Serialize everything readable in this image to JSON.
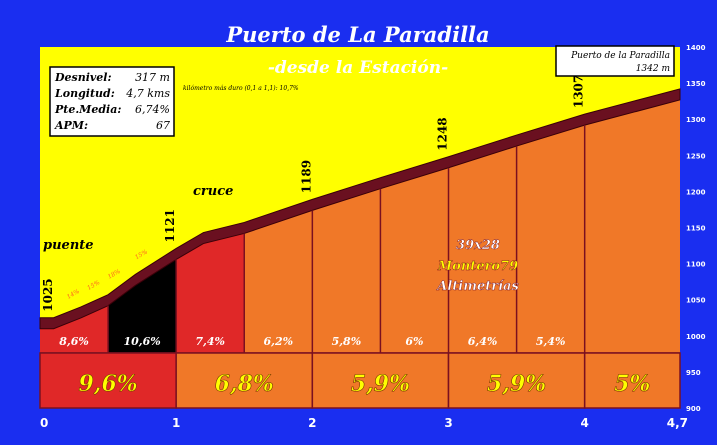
{
  "title": "Puerto de La Paradilla",
  "subtitle": "-desde la Estación-",
  "stats": [
    {
      "label": "Desnivel:",
      "value": "317 m"
    },
    {
      "label": "Longitud:",
      "value": "4,7 kms"
    },
    {
      "label": "Pte.Media:",
      "value": "6,74%"
    },
    {
      "label": "APM:",
      "value": "67"
    }
  ],
  "hardest_note": "kilómetro más duro (0,1 a 1,1): 10,7%",
  "summit": {
    "name": "Puerto de la Paradilla",
    "altitude": "1342 m"
  },
  "credits": {
    "line1": "39x28",
    "line2": "Montero79",
    "line3": "Altimetrías"
  },
  "place_labels": {
    "bridge": "puente",
    "crossing": "cruce"
  },
  "colors": {
    "background": "#1a2ef0",
    "plot": "#ffff00",
    "profile_top": "#6a1020",
    "steep": "#000000",
    "hard": "#e02828",
    "moderate": "#f07828",
    "km_label": "#ffff00"
  },
  "chart_data": {
    "type": "area",
    "title": "Puerto de La Paradilla",
    "subtitle": "-desde la Estación-",
    "xlabel": "",
    "ylabel": "",
    "xlim": [
      0,
      4.7
    ],
    "ylim": [
      900,
      1400
    ],
    "x_ticks": [
      {
        "value": 0,
        "label": "0"
      },
      {
        "value": 1,
        "label": "1"
      },
      {
        "value": 2,
        "label": "2"
      },
      {
        "value": 3,
        "label": "3"
      },
      {
        "value": 4,
        "label": "4"
      },
      {
        "value": 4.7,
        "label": "4,7"
      }
    ],
    "y_ticks": [
      900,
      950,
      1000,
      1050,
      1100,
      1150,
      1200,
      1250,
      1300,
      1350,
      1400
    ],
    "profile": {
      "x": [
        0,
        0.1,
        0.3,
        0.5,
        0.7,
        1.0,
        1.2,
        1.5,
        2.0,
        2.5,
        3.0,
        3.5,
        4.0,
        4.5,
        4.7
      ],
      "y": [
        1025,
        1025,
        1040,
        1057,
        1085,
        1121,
        1143,
        1157,
        1189,
        1219,
        1248,
        1278,
        1307,
        1332,
        1342
      ]
    },
    "segments": [
      {
        "from": 0,
        "to": 0.5,
        "pct": "8,6%",
        "color": "#e02828"
      },
      {
        "from": 0.5,
        "to": 1.0,
        "pct": "10,6%",
        "color": "#000000"
      },
      {
        "from": 1.0,
        "to": 1.5,
        "pct": "7,4%",
        "color": "#e02828"
      },
      {
        "from": 1.5,
        "to": 2.0,
        "pct": "6,2%",
        "color": "#f07828"
      },
      {
        "from": 2.0,
        "to": 2.5,
        "pct": "5,8%",
        "color": "#f07828"
      },
      {
        "from": 2.5,
        "to": 3.0,
        "pct": "6%",
        "color": "#f07828"
      },
      {
        "from": 3.0,
        "to": 3.5,
        "pct": "6,4%",
        "color": "#f07828"
      },
      {
        "from": 3.5,
        "to": 4.0,
        "pct": "5,4%",
        "color": "#f07828"
      },
      {
        "from": 4.0,
        "to": 4.7,
        "pct": "",
        "color": "#f07828"
      }
    ],
    "km_segments": [
      {
        "from": 0,
        "to": 1,
        "pct": "9,6%",
        "color": "#e02828"
      },
      {
        "from": 1,
        "to": 2,
        "pct": "6,8%",
        "color": "#f07828"
      },
      {
        "from": 2,
        "to": 3,
        "pct": "5,9%",
        "color": "#f07828"
      },
      {
        "from": 3,
        "to": 4,
        "pct": "5,9%",
        "color": "#f07828"
      },
      {
        "from": 4,
        "to": 4.7,
        "pct": "5%",
        "color": "#f07828"
      }
    ],
    "altitude_labels": [
      {
        "x": 0,
        "altitude": "1025"
      },
      {
        "x": 1.0,
        "altitude": "1121"
      },
      {
        "x": 2.0,
        "altitude": "1189"
      },
      {
        "x": 3.0,
        "altitude": "1248"
      },
      {
        "x": 4.0,
        "altitude": "1307"
      }
    ],
    "small_pcts": [
      {
        "x": 0.25,
        "pct": "14%"
      },
      {
        "x": 0.4,
        "pct": "15%"
      },
      {
        "x": 0.55,
        "pct": "18%"
      },
      {
        "x": 0.75,
        "pct": "15%"
      }
    ],
    "grid": false
  }
}
